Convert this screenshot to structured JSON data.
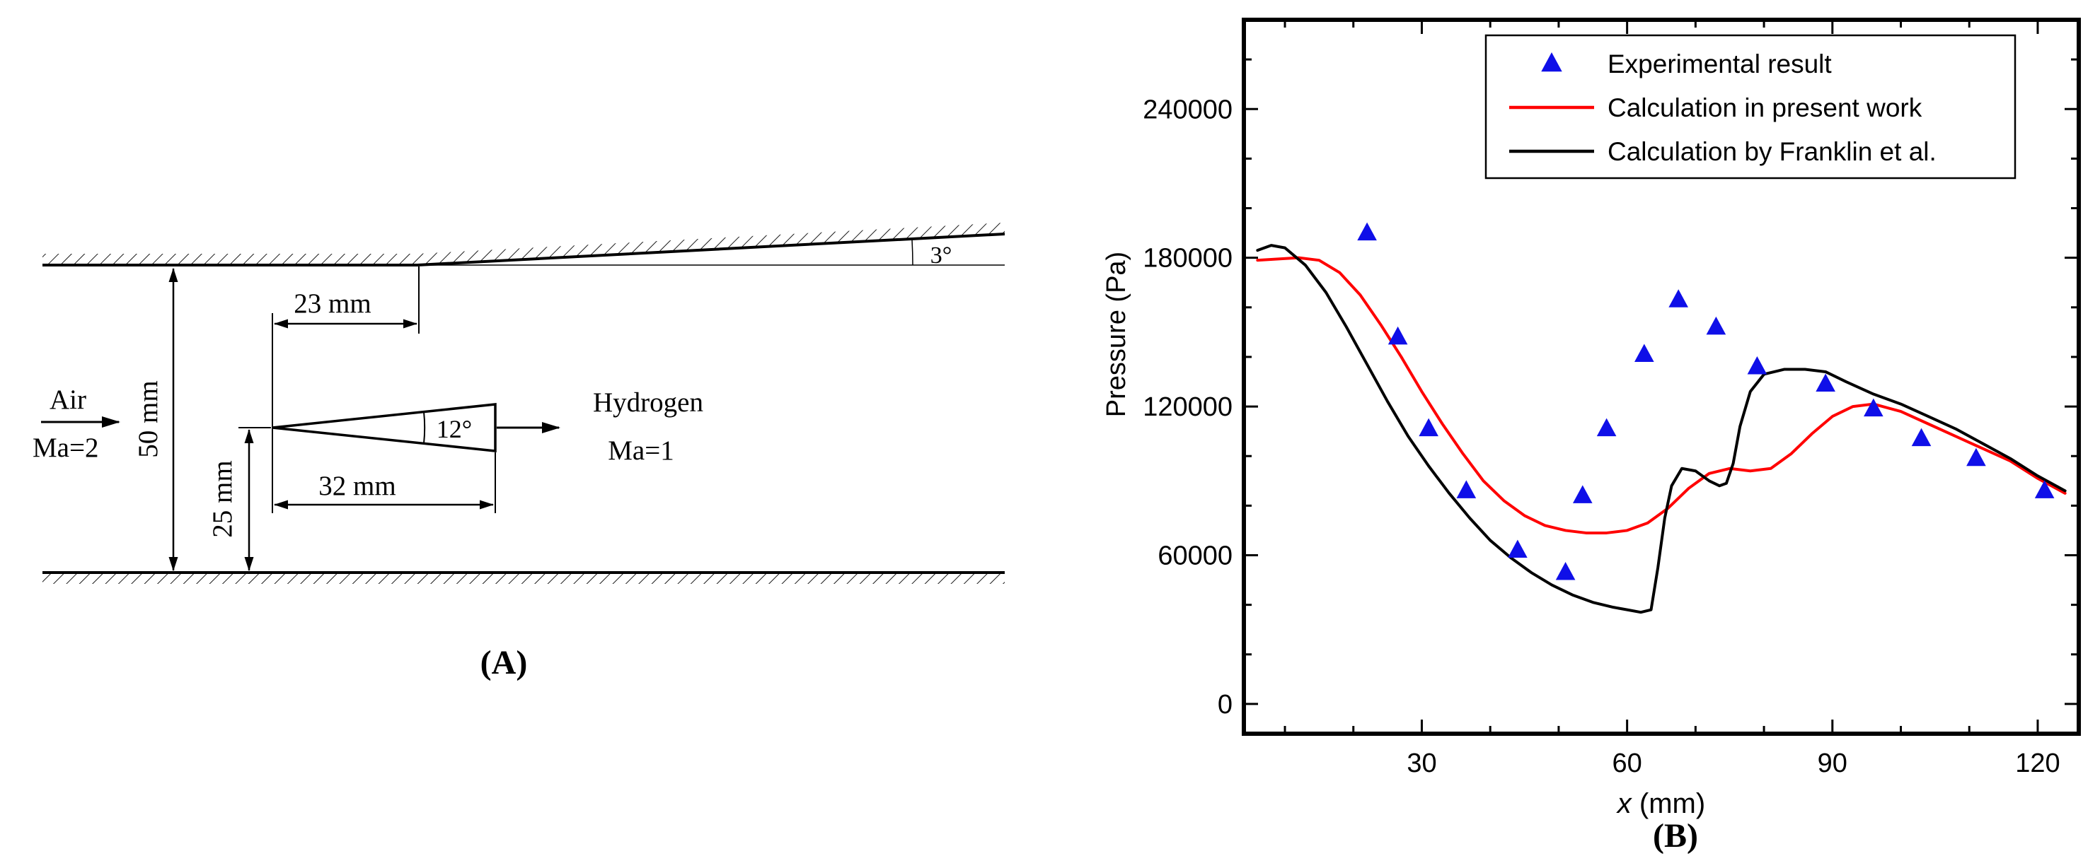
{
  "figure": {
    "background_color": "#ffffff",
    "panel_a": {
      "caption": "(A)",
      "inlet_label": "Air",
      "inlet_mach": "Ma=2",
      "injectant_label": "Hydrogen",
      "injectant_mach": "Ma=1",
      "channel_height": "50 mm",
      "injector_centerline_height": "25 mm",
      "tip_to_expansion_distance": "23 mm",
      "wedge_length": "32 mm",
      "wedge_angle": "12°",
      "top_wall_divergence_angle": "3°"
    },
    "panel_b": {
      "caption": "(B)"
    }
  },
  "chart_data": {
    "type": "line",
    "title": "",
    "xlabel": "x (mm)",
    "xlabel_parts": [
      {
        "text": "x",
        "italic": true
      },
      {
        "text": " (mm)",
        "italic": false
      }
    ],
    "ylabel": "Pressure (Pa)",
    "xlim": [
      4,
      126
    ],
    "ylim": [
      -12000,
      276000
    ],
    "x_major_ticks": [
      30,
      60,
      90,
      120
    ],
    "x_minor_step": 10,
    "y_major_ticks": [
      0,
      60000,
      120000,
      180000,
      240000
    ],
    "y_minor_step": 20000,
    "grid": false,
    "legend_position": "top-right",
    "series": [
      {
        "name": "Experimental result",
        "type": "scatter",
        "marker": "triangle",
        "color": "#0f0fe8",
        "x": [
          22,
          26.5,
          31,
          36.5,
          44,
          51,
          53.5,
          57,
          62.5,
          67.5,
          73,
          79,
          89,
          96,
          103,
          111,
          121
        ],
        "y": [
          190000,
          148000,
          111000,
          86000,
          62000,
          53000,
          84000,
          111000,
          141000,
          163000,
          152000,
          136000,
          129000,
          119000,
          107000,
          99000,
          86000
        ]
      },
      {
        "name": "Calculation in present work",
        "type": "line",
        "color": "#ff0000",
        "x": [
          6,
          12,
          15,
          18,
          21,
          24,
          27,
          30,
          33,
          36,
          39,
          42,
          45,
          48,
          51,
          54,
          57,
          60,
          63,
          66,
          69,
          72,
          75,
          78,
          81,
          84,
          87,
          90,
          93,
          96,
          100,
          104,
          108,
          112,
          116,
          120,
          124
        ],
        "y": [
          179000,
          180000,
          179000,
          174000,
          165000,
          153000,
          140000,
          126000,
          113000,
          101000,
          90000,
          82000,
          76000,
          72000,
          70000,
          69000,
          69000,
          70000,
          73000,
          79000,
          87000,
          93000,
          95000,
          94000,
          95000,
          101000,
          109000,
          116000,
          120000,
          121000,
          118000,
          113000,
          108000,
          103000,
          98000,
          91000,
          85000
        ]
      },
      {
        "name": "Calculation by Franklin et al.",
        "type": "line",
        "color": "#000000",
        "x": [
          6,
          8,
          10,
          13,
          16,
          19,
          22,
          25,
          28,
          31,
          34,
          37,
          40,
          43,
          46,
          49,
          52,
          55,
          58,
          60,
          62,
          63.5,
          64.5,
          65.5,
          66.5,
          68,
          70,
          72,
          73.5,
          74.5,
          75.5,
          76.5,
          78,
          80,
          83,
          86,
          89,
          92,
          96,
          100,
          104,
          108,
          112,
          116,
          120,
          124
        ],
        "y": [
          183000,
          185000,
          184000,
          177000,
          166000,
          152000,
          137000,
          122000,
          108000,
          96000,
          85000,
          75000,
          66000,
          59000,
          53000,
          48000,
          44000,
          41000,
          39000,
          38000,
          37000,
          38000,
          55000,
          75000,
          88000,
          95000,
          94000,
          90000,
          88000,
          89000,
          97000,
          112000,
          126000,
          133000,
          135000,
          135000,
          134000,
          130000,
          125000,
          121000,
          116000,
          111000,
          105000,
          99000,
          92000,
          86000
        ]
      }
    ]
  }
}
